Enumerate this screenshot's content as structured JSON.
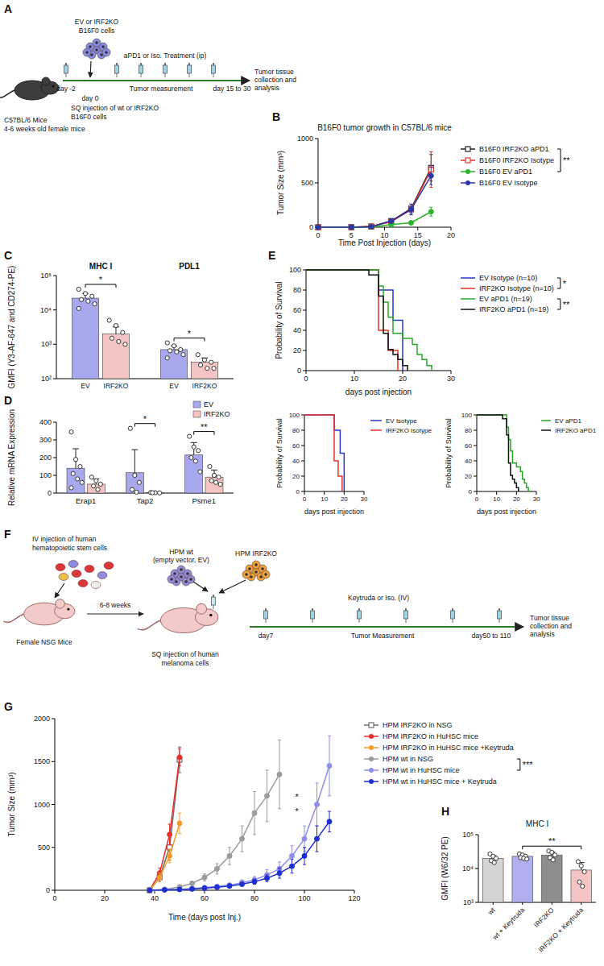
{
  "chart_data": [
    {
      "panel": "B",
      "type": "line",
      "title": "B16F0 tumor growth in C57BL/6 mice",
      "x_label": "Time Post Injection (days)",
      "y_label": "Tumor Size (mm³)",
      "x": [
        0,
        5,
        8,
        11,
        14,
        17
      ],
      "xlim": [
        0,
        20
      ],
      "xticks": [
        0,
        5,
        10,
        15,
        20
      ],
      "ylim": [
        0,
        1000
      ],
      "yticks": [
        0,
        500,
        1000
      ],
      "legend": "right",
      "series": [
        {
          "name": "B16F0 IRF2KO aPD1",
          "color": "#222222",
          "marker": "square-open",
          "values": [
            0,
            0,
            8,
            70,
            210,
            670
          ],
          "errors": [
            0,
            0,
            3,
            20,
            50,
            150
          ]
        },
        {
          "name": "B16F0 IRF2KO Isotype",
          "color": "#e8302a",
          "marker": "square-open",
          "values": [
            0,
            0,
            8,
            60,
            200,
            650
          ],
          "errors": [
            0,
            0,
            3,
            20,
            60,
            200
          ]
        },
        {
          "name": "B16F0 EV aPD1",
          "color": "#27b427",
          "marker": "circle",
          "values": [
            0,
            0,
            3,
            30,
            50,
            175
          ],
          "errors": [
            0,
            0,
            2,
            10,
            20,
            50
          ]
        },
        {
          "name": "B16F0 EV Isotype",
          "color": "#2a37a8",
          "marker": "circle",
          "values": [
            0,
            0,
            5,
            70,
            200,
            580
          ],
          "errors": [
            0,
            0,
            3,
            25,
            60,
            100
          ]
        }
      ],
      "annotations": [
        {
          "text": "**",
          "between": [
            0,
            2
          ]
        }
      ]
    },
    {
      "panel": "C",
      "type": "bar",
      "y_label": "GMFI (Y3-AF-647 and CD274-PE)",
      "log": "y",
      "ylim": [
        100,
        100000
      ],
      "yticks": [
        {
          "value": 100,
          "label": "10²"
        },
        {
          "value": 1000,
          "label": "10³"
        },
        {
          "value": 10000,
          "label": "10⁴"
        },
        {
          "value": 100000,
          "label": "10⁵"
        }
      ],
      "categories": [
        "MHC I",
        "PDL1"
      ],
      "series": [
        {
          "name": "EV",
          "color": "#a8a8ef",
          "values": [
            22000,
            700
          ],
          "errors": [
            8000,
            200
          ],
          "points": [
            [
              40000,
              30000,
              25000,
              20000,
              18000,
              15000,
              11000
            ],
            [
              1100,
              900,
              700,
              650,
              600,
              500,
              400
            ]
          ]
        },
        {
          "name": "IRF2KO",
          "color": "#f4c4c4",
          "values": [
            2000,
            300
          ],
          "errors": [
            1200,
            100
          ],
          "points": [
            [
              5000,
              3500,
              2200,
              1500,
              1200,
              1000
            ],
            [
              500,
              350,
              300,
              250,
              200,
              200
            ]
          ]
        }
      ],
      "annotations": [
        {
          "text": "*",
          "category": 0
        },
        {
          "text": "*",
          "category": 1
        }
      ]
    },
    {
      "panel": "D",
      "type": "bar",
      "y_label": "Relative mRNA Expression",
      "ylim": [
        0,
        400
      ],
      "yticks": [
        0,
        100,
        200,
        300,
        400
      ],
      "legend": "top-right",
      "categories": [
        "Erap1",
        "Tap2",
        "Psme1"
      ],
      "series": [
        {
          "name": "EV",
          "color": "#a8a8ef",
          "values": [
            140,
            115,
            215
          ],
          "errors": [
            110,
            130,
            70
          ],
          "points": [
            [
              345,
              190,
              150,
              110,
              80,
              60,
              30
            ],
            [
              365,
              100,
              60,
              20,
              5
            ],
            [
              320,
              260,
              240,
              200,
              180,
              120
            ]
          ]
        },
        {
          "name": "IRF2KO",
          "color": "#f4c4c4",
          "values": [
            50,
            2,
            90
          ],
          "errors": [
            30,
            2,
            40
          ],
          "points": [
            [
              90,
              70,
              50,
              40,
              20
            ],
            [
              3,
              2,
              1,
              2
            ],
            [
              150,
              100,
              90,
              70,
              60,
              50
            ]
          ]
        }
      ],
      "annotations": [
        {
          "text": "*",
          "category": 1
        },
        {
          "text": "**",
          "category": 2
        }
      ]
    },
    {
      "panel": "E",
      "type": "step",
      "x_label": "days post injection",
      "y_label": "Probability of Survival",
      "xlim": [
        0,
        30
      ],
      "xticks": [
        0,
        10,
        20,
        30
      ],
      "ylim": [
        0,
        100
      ],
      "yticks": [
        0,
        20,
        40,
        60,
        80,
        100
      ],
      "legend": "right",
      "series": [
        {
          "name": "EV Isotype (n=10)",
          "color": "#2438c9",
          "x": [
            0,
            15,
            18,
            20
          ],
          "values": [
            100,
            80,
            50,
            0
          ]
        },
        {
          "name": "IRF2KO Isotype (n=10)",
          "color": "#e8302a",
          "x": [
            0,
            15,
            17,
            19
          ],
          "values": [
            100,
            40,
            20,
            0
          ]
        },
        {
          "name": "EV aPD1 (n=19)",
          "color": "#27a827",
          "x": [
            0,
            15,
            16,
            17,
            18,
            20,
            22,
            23,
            24,
            25,
            26
          ],
          "values": [
            100,
            84,
            68,
            53,
            37,
            32,
            26,
            16,
            11,
            5,
            0
          ]
        },
        {
          "name": "IRF2KO aPD1 (n=19)",
          "color": "#111111",
          "x": [
            0,
            13,
            15,
            16,
            17,
            18,
            19,
            20,
            21
          ],
          "values": [
            100,
            95,
            74,
            37,
            21,
            16,
            11,
            5,
            0
          ]
        }
      ],
      "annotations": [
        {
          "text": "*",
          "between": [
            0,
            1
          ]
        },
        {
          "text": "**",
          "between": [
            2,
            3
          ]
        }
      ]
    },
    {
      "type": "step",
      "x_label": "days post injection",
      "y_label": "Probability of Survival",
      "xlim": [
        0,
        30
      ],
      "xticks": [
        0,
        10,
        20,
        30
      ],
      "ylim": [
        0,
        100
      ],
      "yticks": [
        0,
        20,
        40,
        60,
        80,
        100
      ],
      "legend": "right",
      "series": [
        {
          "name": "EV Isotype",
          "color": "#2438c9",
          "x": [
            0,
            15,
            18,
            20
          ],
          "values": [
            100,
            80,
            50,
            0
          ]
        },
        {
          "name": "IRF2KO Isotype",
          "color": "#e8302a",
          "x": [
            0,
            15,
            17,
            19
          ],
          "values": [
            100,
            40,
            20,
            0
          ]
        }
      ]
    },
    {
      "type": "step",
      "x_label": "days post injection",
      "y_label": "Probability of Survival",
      "xlim": [
        0,
        30
      ],
      "xticks": [
        0,
        10,
        20,
        30
      ],
      "ylim": [
        0,
        100
      ],
      "yticks": [
        0,
        20,
        40,
        60,
        80,
        100
      ],
      "legend": "right",
      "series": [
        {
          "name": "EV aPD1",
          "color": "#27a827",
          "x": [
            0,
            15,
            16,
            17,
            18,
            20,
            22,
            23,
            24,
            25,
            26
          ],
          "values": [
            100,
            84,
            68,
            53,
            37,
            32,
            26,
            16,
            11,
            5,
            0
          ]
        },
        {
          "name": "IRF2KO aPD1",
          "color": "#111111",
          "x": [
            0,
            13,
            15,
            16,
            17,
            18,
            19,
            20,
            21
          ],
          "values": [
            100,
            95,
            74,
            37,
            21,
            16,
            11,
            5,
            0
          ]
        }
      ]
    },
    {
      "panel": "G",
      "type": "line",
      "x_label": "Time (days post Inj.)",
      "y_label": "Tumor Size (mm³)",
      "xlim": [
        0,
        120
      ],
      "xticks": [
        0,
        20,
        40,
        60,
        80,
        100,
        120
      ],
      "ylim": [
        0,
        2000
      ],
      "yticks": [
        0,
        500,
        1000,
        1500,
        2000
      ],
      "legend": "right",
      "series": [
        {
          "name": "HPM IRF2KO in NSG",
          "color": "#6e6e6e",
          "marker": "square-open",
          "x": [
            38,
            42,
            46,
            50
          ],
          "values": [
            0,
            150,
            500,
            1520
          ],
          "errors": [
            0,
            50,
            150,
            150
          ]
        },
        {
          "name": "HPM IRF2KO in HuHSC mice",
          "color": "#e8302a",
          "marker": "circle",
          "x": [
            38,
            42,
            46,
            50
          ],
          "values": [
            0,
            200,
            650,
            1550
          ],
          "errors": [
            0,
            60,
            120,
            100
          ]
        },
        {
          "name": "HPM IRF2KO in HuHSC mice +Keytruda",
          "color": "#f39a2b",
          "marker": "circle",
          "x": [
            38,
            42,
            46,
            50
          ],
          "values": [
            0,
            150,
            400,
            780
          ],
          "errors": [
            0,
            50,
            80,
            120
          ]
        },
        {
          "name": "HPM wt in NSG",
          "color": "#9b9b9b",
          "marker": "circle",
          "x": [
            38,
            44,
            50,
            55,
            60,
            65,
            70,
            75,
            80,
            85,
            90
          ],
          "values": [
            0,
            10,
            40,
            80,
            150,
            250,
            400,
            600,
            900,
            1100,
            1350
          ],
          "errors": [
            0,
            5,
            10,
            20,
            40,
            60,
            100,
            150,
            250,
            300,
            400
          ]
        },
        {
          "name": "HPM wt in HuHSC mice",
          "color": "#8f8fe8",
          "marker": "circle",
          "x": [
            38,
            44,
            50,
            55,
            60,
            65,
            70,
            75,
            80,
            85,
            90,
            95,
            100,
            105,
            110
          ],
          "values": [
            0,
            5,
            10,
            20,
            30,
            45,
            60,
            90,
            120,
            180,
            250,
            400,
            600,
            1000,
            1450
          ],
          "errors": [
            0,
            2,
            5,
            8,
            10,
            15,
            20,
            30,
            40,
            60,
            80,
            120,
            150,
            250,
            350
          ]
        },
        {
          "name": "HPM wt in HuHSC mice + Keytruda",
          "color": "#1f2fd0",
          "marker": "circle",
          "x": [
            38,
            44,
            50,
            55,
            60,
            65,
            70,
            75,
            80,
            85,
            90,
            95,
            100,
            105,
            110
          ],
          "values": [
            0,
            5,
            10,
            15,
            25,
            35,
            50,
            70,
            100,
            140,
            200,
            280,
            400,
            600,
            800
          ],
          "errors": [
            0,
            2,
            4,
            6,
            8,
            10,
            15,
            20,
            30,
            40,
            60,
            80,
            100,
            150,
            120
          ]
        }
      ],
      "annotations": [
        {
          "text": "***",
          "between": [
            3,
            4
          ]
        },
        {
          "text": "*",
          "x": 97,
          "y": 1050
        },
        {
          "text": "*",
          "x": 97,
          "y": 880
        }
      ]
    },
    {
      "panel": "H",
      "type": "bar",
      "title": "MHC I",
      "y_label": "GMFI (W6/32 PE)",
      "log": "y",
      "ylim": [
        1000,
        100000
      ],
      "yticks": [
        {
          "value": 1000,
          "label": "10³"
        },
        {
          "value": 10000,
          "label": "10⁴"
        },
        {
          "value": 100000,
          "label": "10⁵"
        }
      ],
      "categories": [
        "wt",
        "wt + Keytruda",
        "IRF2KO",
        "IRF2KO + Keytruda"
      ],
      "values": [
        20000,
        23000,
        25000,
        9000
      ],
      "errors": [
        4000,
        3000,
        6000,
        6000
      ],
      "points": [
        [
          27000,
          23000,
          20000,
          17000,
          15000
        ],
        [
          27000,
          25000,
          23000,
          21000,
          20000,
          19000
        ],
        [
          33000,
          30000,
          25000,
          21000,
          18000
        ],
        [
          16000,
          12000,
          8000,
          4000,
          3000
        ]
      ],
      "colors": [
        "#d4d4d4",
        "#b0b0ee",
        "#8e8e8e",
        "#f4c4c4"
      ],
      "annotations": [
        {
          "text": "**",
          "between": [
            1,
            3
          ]
        }
      ]
    }
  ],
  "diagrams": [
    {
      "panel": "A",
      "cells_label": [
        "EV or IRF2KO",
        "B16F0 cells"
      ],
      "treatment": "aPD1 or Iso. Treatment (ip)",
      "day_start": "day -2",
      "day_injection": "day 0",
      "measurement": "Tumor measurement",
      "day_end": "day 15 to 30",
      "endpoint": [
        "Tumor tissue",
        "collection and",
        "analysis"
      ],
      "mouse": [
        "C57BL/6 Mice",
        "4-6 weeks old female mice"
      ],
      "injection": [
        "SQ injection of wt or IRF2KO",
        "B16F0 cells"
      ]
    },
    {
      "panel": "F",
      "hsc_label": [
        "IV injection of human",
        "hematopoietic stem cells"
      ],
      "mouse": "Female NSG Mice",
      "interval": "6-8 weeks",
      "ko_cells": "HPM IRF2KO",
      "wt_cells": [
        "HPM wt",
        "(empty vector, EV)"
      ],
      "treatment": "Keytruda or Iso. (IV)",
      "injection": [
        "SQ injection of human",
        "melanoma cells"
      ],
      "day_start": "day7",
      "measurement": "Tumor Measurement",
      "day_end": "day50 to 110",
      "endpoint": [
        "Tumor tissue",
        "collection and",
        "analysis"
      ]
    }
  ]
}
